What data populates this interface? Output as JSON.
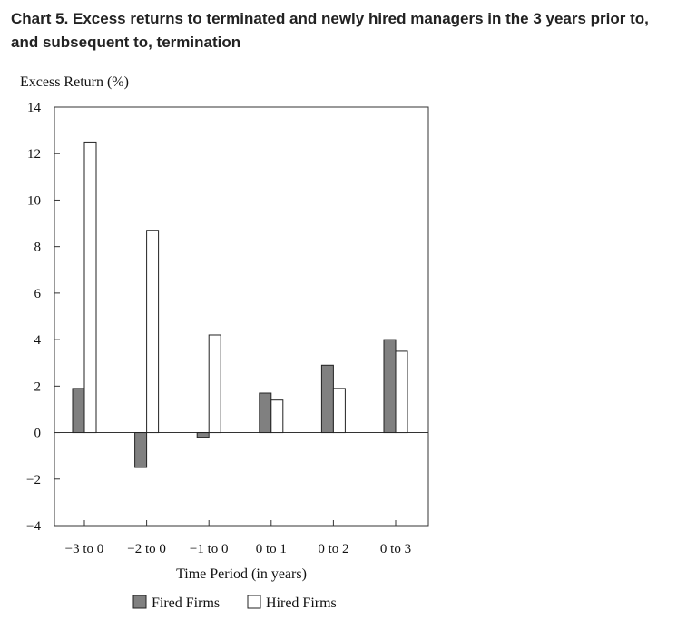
{
  "title": "Chart 5. Excess returns to terminated and newly hired managers in the 3 years prior to, and subsequent to, termination",
  "chart_data": {
    "type": "bar",
    "title": "Chart 5. Excess returns to terminated and newly hired managers in the 3 years prior to, and subsequent to, termination",
    "xlabel": "Time Period (in years)",
    "ylabel": "Excess Return (%)",
    "categories": [
      "−3 to 0",
      "−2 to 0",
      "−1 to 0",
      "0 to 1",
      "0 to 2",
      "0 to 3"
    ],
    "series": [
      {
        "name": "Fired Firms",
        "values": [
          1.9,
          -1.5,
          -0.2,
          1.7,
          2.9,
          4.0
        ],
        "color": "#808080"
      },
      {
        "name": "Hired Firms",
        "values": [
          12.5,
          8.7,
          4.2,
          1.4,
          1.9,
          3.5
        ],
        "color": "#ffffff"
      }
    ],
    "ylim": [
      -4,
      14
    ],
    "yticks": [
      {
        "value": -4,
        "label": "−4"
      },
      {
        "value": -2,
        "label": "−2"
      },
      {
        "value": 0,
        "label": "0"
      },
      {
        "value": 2,
        "label": "2"
      },
      {
        "value": 4,
        "label": "4"
      },
      {
        "value": 6,
        "label": "6"
      },
      {
        "value": 8,
        "label": "8"
      },
      {
        "value": 10,
        "label": "10"
      },
      {
        "value": 12,
        "label": "12"
      },
      {
        "value": 14,
        "label": "14"
      }
    ],
    "grid": false,
    "legend_position": "bottom-center"
  }
}
